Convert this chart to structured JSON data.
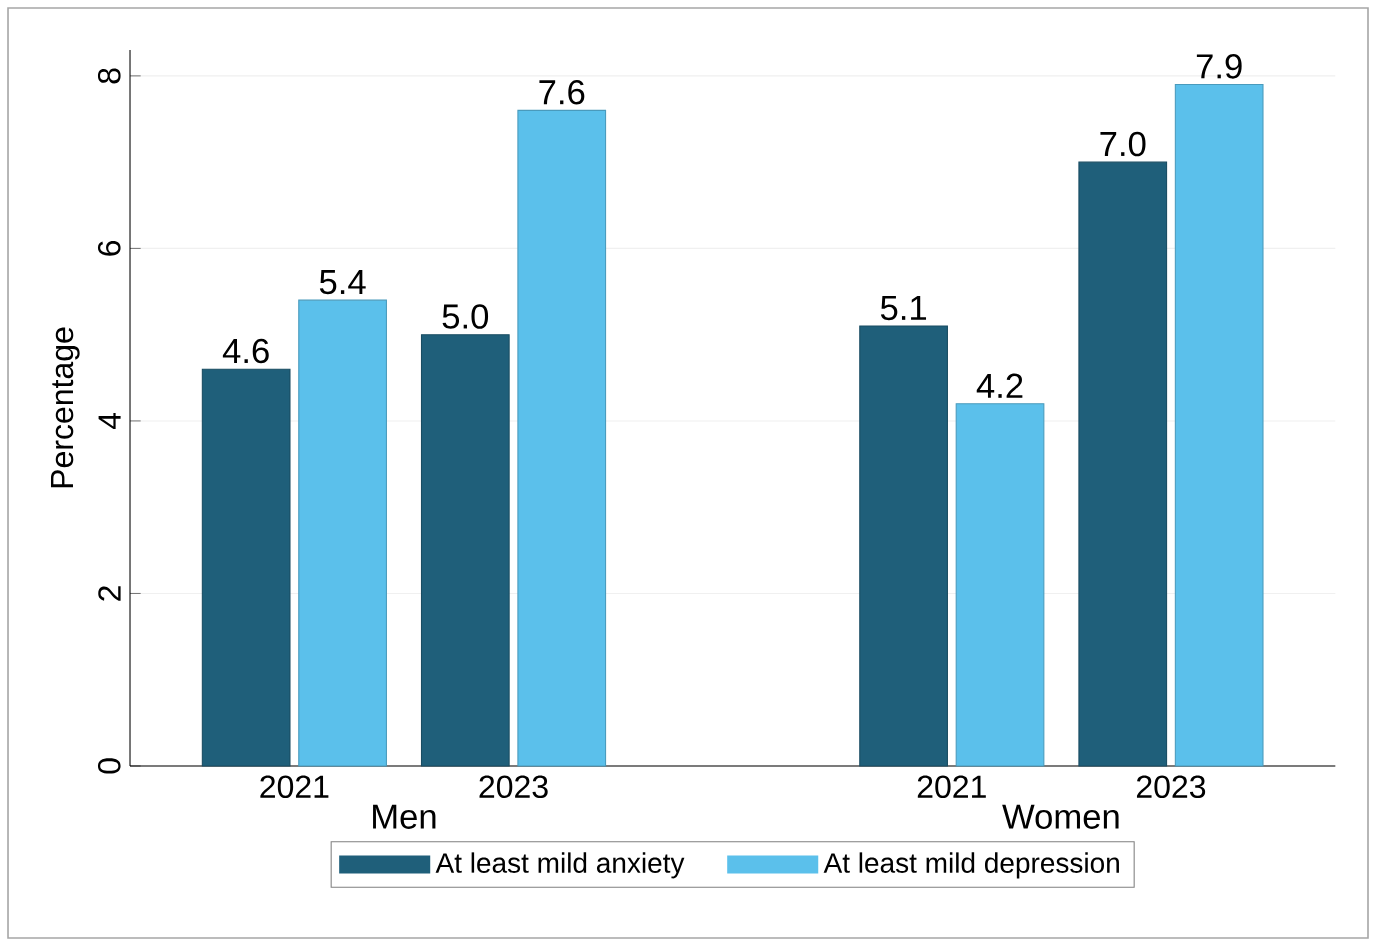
{
  "chart_data": {
    "type": "bar",
    "ylabel": "Percentage",
    "categories": [
      "2021",
      "2023",
      null,
      "2021",
      "2023"
    ],
    "annotations": [
      "Men",
      "Women"
    ],
    "series": [
      {
        "name": "At least mild anxiety",
        "color": "#1f5f7a",
        "values": [
          4.6,
          5.0,
          null,
          5.1,
          7.0
        ],
        "value_labels": [
          "4.6",
          "5.0",
          null,
          "5.1",
          "7.0"
        ]
      },
      {
        "name": "At least mild depression",
        "color": "#5bc0eb",
        "values": [
          5.4,
          7.6,
          null,
          4.2,
          7.9
        ],
        "value_labels": [
          "5.4",
          "7.6",
          null,
          "4.2",
          "7.9"
        ]
      }
    ],
    "ylim": [
      0,
      8.3
    ],
    "yticks": [
      0,
      2,
      4,
      6,
      8
    ],
    "grid": "y",
    "legend": "bottom"
  }
}
